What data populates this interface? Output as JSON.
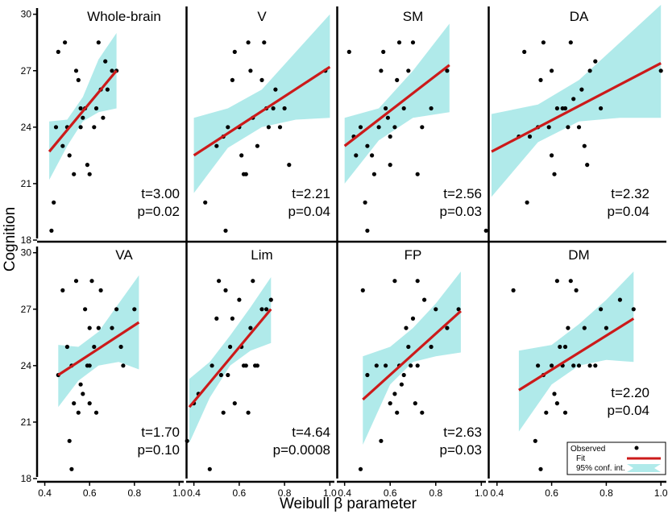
{
  "chart_data": {
    "type": "scatter",
    "xlabel": "Weibull β parameter",
    "ylabel": "Cognition",
    "xticks": [
      "0.4",
      "0.6",
      "0.8",
      "1.0"
    ],
    "yticks": [
      "18",
      "21",
      "24",
      "27",
      "30"
    ],
    "xlim": [
      0.38,
      1.02
    ],
    "ylim": [
      18,
      30.5
    ],
    "legend": {
      "position": "bottom-right",
      "entries": [
        "Observed",
        "Fit",
        "95% conf. int."
      ]
    },
    "colors": {
      "fit": "#cc1a1a",
      "ci": "#b0eaea",
      "points": "#000000"
    },
    "panels": [
      {
        "title": "Whole-brain",
        "t": "t=3.00",
        "p": "p=0.02",
        "fit": [
          0.42,
          22.7,
          0.72,
          27.0
        ],
        "ci_lower": [
          [
            0.42,
            21.2
          ],
          [
            0.5,
            23.0
          ],
          [
            0.57,
            24.3
          ],
          [
            0.64,
            24.8
          ],
          [
            0.72,
            25.0
          ]
        ],
        "ci_upper": [
          [
            0.42,
            24.3
          ],
          [
            0.5,
            24.4
          ],
          [
            0.57,
            25.6
          ],
          [
            0.64,
            27.6
          ],
          [
            0.72,
            29.0
          ]
        ],
        "points": [
          [
            0.43,
            18.5
          ],
          [
            0.44,
            20.0
          ],
          [
            0.45,
            24.0
          ],
          [
            0.46,
            28.0
          ],
          [
            0.48,
            23.0
          ],
          [
            0.49,
            28.5
          ],
          [
            0.5,
            24.0
          ],
          [
            0.51,
            22.5
          ],
          [
            0.53,
            21.5
          ],
          [
            0.54,
            27.0
          ],
          [
            0.55,
            26.5
          ],
          [
            0.56,
            25.0
          ],
          [
            0.57,
            24.5
          ],
          [
            0.58,
            25.0
          ],
          [
            0.59,
            22.0
          ],
          [
            0.6,
            21.5
          ],
          [
            0.62,
            24.0
          ],
          [
            0.63,
            25.0
          ],
          [
            0.64,
            28.5
          ],
          [
            0.65,
            26.0
          ],
          [
            0.66,
            24.5
          ],
          [
            0.67,
            27.5
          ],
          [
            0.68,
            26.0
          ],
          [
            0.7,
            27.0
          ],
          [
            0.72,
            27.0
          ],
          [
            0.56,
            24.0
          ]
        ]
      },
      {
        "title": "V",
        "t": "t=2.21",
        "p": "p=0.04",
        "fit": [
          0.4,
          22.5,
          1.0,
          27.2
        ],
        "ci_lower": [
          [
            0.4,
            20.5
          ],
          [
            0.55,
            22.9
          ],
          [
            0.7,
            24.0
          ],
          [
            0.85,
            24.4
          ],
          [
            1.0,
            24.5
          ]
        ],
        "ci_upper": [
          [
            0.4,
            24.5
          ],
          [
            0.55,
            25.0
          ],
          [
            0.7,
            26.0
          ],
          [
            0.85,
            28.0
          ],
          [
            1.0,
            30.0
          ]
        ],
        "points": [
          [
            0.45,
            20.0
          ],
          [
            0.5,
            23.0
          ],
          [
            0.54,
            18.5
          ],
          [
            0.55,
            24.0
          ],
          [
            0.57,
            26.5
          ],
          [
            0.58,
            28.0
          ],
          [
            0.6,
            24.0
          ],
          [
            0.61,
            22.5
          ],
          [
            0.62,
            21.5
          ],
          [
            0.63,
            21.5
          ],
          [
            0.64,
            28.5
          ],
          [
            0.65,
            27.0
          ],
          [
            0.66,
            24.5
          ],
          [
            0.68,
            23.0
          ],
          [
            0.7,
            26.5
          ],
          [
            0.71,
            28.5
          ],
          [
            0.72,
            25.0
          ],
          [
            0.73,
            24.0
          ],
          [
            0.75,
            25.0
          ],
          [
            0.78,
            24.0
          ],
          [
            0.8,
            25.0
          ],
          [
            0.82,
            22.0
          ],
          [
            0.98,
            27.0
          ],
          [
            0.53,
            23.5
          ],
          [
            0.76,
            26.0
          ]
        ]
      },
      {
        "title": "SM",
        "t": "t=2.56",
        "p": "p=0.03",
        "fit": [
          0.4,
          23.0,
          0.86,
          27.3
        ],
        "ci_lower": [
          [
            0.4,
            21.0
          ],
          [
            0.55,
            23.3
          ],
          [
            0.7,
            24.5
          ],
          [
            0.86,
            24.8
          ]
        ],
        "ci_upper": [
          [
            0.4,
            24.5
          ],
          [
            0.55,
            25.0
          ],
          [
            0.7,
            27.0
          ],
          [
            0.86,
            29.5
          ]
        ],
        "points": [
          [
            0.42,
            28.0
          ],
          [
            0.44,
            23.5
          ],
          [
            0.45,
            22.5
          ],
          [
            0.47,
            24.0
          ],
          [
            0.49,
            20.0
          ],
          [
            0.5,
            18.5
          ],
          [
            0.5,
            23.0
          ],
          [
            0.52,
            22.5
          ],
          [
            0.53,
            21.5
          ],
          [
            0.55,
            24.0
          ],
          [
            0.56,
            27.0
          ],
          [
            0.58,
            25.0
          ],
          [
            0.59,
            24.5
          ],
          [
            0.6,
            23.5
          ],
          [
            0.6,
            22.0
          ],
          [
            0.62,
            24.0
          ],
          [
            0.63,
            26.5
          ],
          [
            0.64,
            28.5
          ],
          [
            0.66,
            25.0
          ],
          [
            0.68,
            27.0
          ],
          [
            0.7,
            28.5
          ],
          [
            0.72,
            21.5
          ],
          [
            0.74,
            24.0
          ],
          [
            0.78,
            25.0
          ],
          [
            0.85,
            27.0
          ],
          [
            0.57,
            28.0
          ]
        ]
      },
      {
        "title": "DA",
        "t": "t=2.32",
        "p": "p=0.04",
        "fit": [
          0.38,
          22.7,
          1.0,
          27.4
        ],
        "ci_lower": [
          [
            0.38,
            20.3
          ],
          [
            0.55,
            23.2
          ],
          [
            0.7,
            24.3
          ],
          [
            0.85,
            24.5
          ],
          [
            1.0,
            24.5
          ]
        ],
        "ci_upper": [
          [
            0.38,
            24.7
          ],
          [
            0.55,
            25.2
          ],
          [
            0.7,
            26.5
          ],
          [
            0.85,
            28.5
          ],
          [
            1.0,
            30.5
          ]
        ],
        "points": [
          [
            0.36,
            18.5
          ],
          [
            0.48,
            23.5
          ],
          [
            0.5,
            28.0
          ],
          [
            0.51,
            20.0
          ],
          [
            0.52,
            23.5
          ],
          [
            0.55,
            24.0
          ],
          [
            0.56,
            26.5
          ],
          [
            0.57,
            28.5
          ],
          [
            0.59,
            24.0
          ],
          [
            0.6,
            27.0
          ],
          [
            0.6,
            22.5
          ],
          [
            0.61,
            21.5
          ],
          [
            0.62,
            25.0
          ],
          [
            0.64,
            25.0
          ],
          [
            0.65,
            25.0
          ],
          [
            0.66,
            24.0
          ],
          [
            0.67,
            28.5
          ],
          [
            0.68,
            25.5
          ],
          [
            0.7,
            24.0
          ],
          [
            0.72,
            23.0
          ],
          [
            0.73,
            22.0
          ],
          [
            0.74,
            27.0
          ],
          [
            0.76,
            27.5
          ],
          [
            0.78,
            25.0
          ],
          [
            1.0,
            27.0
          ],
          [
            0.71,
            26.0
          ]
        ]
      },
      {
        "title": "VA",
        "t": "t=1.70",
        "p": "p=0.10",
        "fit": [
          0.46,
          23.5,
          0.82,
          26.3
        ],
        "ci_lower": [
          [
            0.46,
            21.8
          ],
          [
            0.55,
            23.2
          ],
          [
            0.64,
            24.0
          ],
          [
            0.73,
            24.2
          ],
          [
            0.82,
            23.8
          ]
        ],
        "ci_upper": [
          [
            0.46,
            25.1
          ],
          [
            0.55,
            25.0
          ],
          [
            0.64,
            25.8
          ],
          [
            0.73,
            27.3
          ],
          [
            0.82,
            28.8
          ]
        ],
        "points": [
          [
            0.46,
            23.5
          ],
          [
            0.48,
            28.0
          ],
          [
            0.5,
            25.0
          ],
          [
            0.51,
            20.0
          ],
          [
            0.52,
            18.5
          ],
          [
            0.52,
            24.0
          ],
          [
            0.53,
            22.0
          ],
          [
            0.54,
            28.5
          ],
          [
            0.55,
            21.5
          ],
          [
            0.56,
            23.0
          ],
          [
            0.57,
            22.5
          ],
          [
            0.58,
            27.0
          ],
          [
            0.59,
            24.0
          ],
          [
            0.6,
            24.0
          ],
          [
            0.6,
            26.0
          ],
          [
            0.61,
            28.5
          ],
          [
            0.62,
            25.0
          ],
          [
            0.63,
            21.5
          ],
          [
            0.64,
            26.0
          ],
          [
            0.65,
            28.0
          ],
          [
            0.7,
            26.0
          ],
          [
            0.72,
            27.0
          ],
          [
            0.74,
            25.0
          ],
          [
            0.75,
            24.0
          ],
          [
            0.8,
            27.0
          ],
          [
            0.6,
            22.0
          ]
        ]
      },
      {
        "title": "Lim",
        "t": "t=4.64",
        "p": "p=0.0008",
        "fit": [
          0.38,
          21.8,
          0.74,
          27.0
        ],
        "ci_lower": [
          [
            0.38,
            19.9
          ],
          [
            0.47,
            22.3
          ],
          [
            0.56,
            24.0
          ],
          [
            0.65,
            24.8
          ],
          [
            0.74,
            25.2
          ]
        ],
        "ci_upper": [
          [
            0.38,
            23.3
          ],
          [
            0.47,
            24.2
          ],
          [
            0.56,
            25.6
          ],
          [
            0.65,
            27.1
          ],
          [
            0.74,
            28.7
          ]
        ],
        "points": [
          [
            0.37,
            20.0
          ],
          [
            0.4,
            22.0
          ],
          [
            0.42,
            22.5
          ],
          [
            0.47,
            18.5
          ],
          [
            0.48,
            24.0
          ],
          [
            0.5,
            26.5
          ],
          [
            0.51,
            28.5
          ],
          [
            0.52,
            23.5
          ],
          [
            0.53,
            21.5
          ],
          [
            0.54,
            28.0
          ],
          [
            0.55,
            23.5
          ],
          [
            0.56,
            25.0
          ],
          [
            0.57,
            26.5
          ],
          [
            0.58,
            22.0
          ],
          [
            0.6,
            27.5
          ],
          [
            0.62,
            24.0
          ],
          [
            0.63,
            24.0
          ],
          [
            0.64,
            21.5
          ],
          [
            0.65,
            26.0
          ],
          [
            0.66,
            28.5
          ],
          [
            0.67,
            24.0
          ],
          [
            0.68,
            24.0
          ],
          [
            0.7,
            27.0
          ],
          [
            0.72,
            27.0
          ],
          [
            0.74,
            27.5
          ],
          [
            0.61,
            25.0
          ]
        ]
      },
      {
        "title": "FP",
        "t": "t=2.63",
        "p": "p=0.03",
        "fit": [
          0.48,
          22.2,
          0.91,
          26.9
        ],
        "ci_lower": [
          [
            0.48,
            19.8
          ],
          [
            0.6,
            23.0
          ],
          [
            0.7,
            24.2
          ],
          [
            0.8,
            24.5
          ],
          [
            0.91,
            24.7
          ]
        ],
        "ci_upper": [
          [
            0.48,
            24.5
          ],
          [
            0.6,
            25.0
          ],
          [
            0.7,
            26.0
          ],
          [
            0.8,
            27.3
          ],
          [
            0.91,
            29.0
          ]
        ],
        "points": [
          [
            0.47,
            18.5
          ],
          [
            0.48,
            28.0
          ],
          [
            0.5,
            23.5
          ],
          [
            0.54,
            24.0
          ],
          [
            0.56,
            20.0
          ],
          [
            0.58,
            24.0
          ],
          [
            0.6,
            22.0
          ],
          [
            0.62,
            22.5
          ],
          [
            0.62,
            28.5
          ],
          [
            0.63,
            21.5
          ],
          [
            0.64,
            24.0
          ],
          [
            0.65,
            23.0
          ],
          [
            0.67,
            26.0
          ],
          [
            0.68,
            25.0
          ],
          [
            0.69,
            24.0
          ],
          [
            0.7,
            26.5
          ],
          [
            0.72,
            24.0
          ],
          [
            0.72,
            28.5
          ],
          [
            0.74,
            21.5
          ],
          [
            0.75,
            27.5
          ],
          [
            0.78,
            25.0
          ],
          [
            0.8,
            27.0
          ],
          [
            0.85,
            26.0
          ],
          [
            0.9,
            27.0
          ],
          [
            0.66,
            23.5
          ],
          [
            0.71,
            22.0
          ]
        ]
      },
      {
        "title": "DM",
        "t": "t=2.20",
        "p": "p=0.04",
        "fit": [
          0.48,
          22.7,
          0.9,
          26.5
        ],
        "ci_lower": [
          [
            0.48,
            20.5
          ],
          [
            0.6,
            23.0
          ],
          [
            0.7,
            24.0
          ],
          [
            0.8,
            24.3
          ],
          [
            0.9,
            24.2
          ]
        ],
        "ci_upper": [
          [
            0.48,
            24.8
          ],
          [
            0.6,
            25.1
          ],
          [
            0.7,
            26.2
          ],
          [
            0.8,
            27.5
          ],
          [
            0.9,
            29.0
          ]
        ],
        "points": [
          [
            0.46,
            28.0
          ],
          [
            0.54,
            20.0
          ],
          [
            0.55,
            24.0
          ],
          [
            0.57,
            23.5
          ],
          [
            0.58,
            21.5
          ],
          [
            0.6,
            24.0
          ],
          [
            0.61,
            22.5
          ],
          [
            0.62,
            28.5
          ],
          [
            0.62,
            22.0
          ],
          [
            0.63,
            25.0
          ],
          [
            0.64,
            24.0
          ],
          [
            0.65,
            25.0
          ],
          [
            0.66,
            26.0
          ],
          [
            0.67,
            28.5
          ],
          [
            0.68,
            24.0
          ],
          [
            0.69,
            28.0
          ],
          [
            0.7,
            24.0
          ],
          [
            0.72,
            26.0
          ],
          [
            0.74,
            24.0
          ],
          [
            0.76,
            24.0
          ],
          [
            0.78,
            27.0
          ],
          [
            0.8,
            26.0
          ],
          [
            0.85,
            27.5
          ],
          [
            0.9,
            27.0
          ],
          [
            0.65,
            21.5
          ],
          [
            0.56,
            18.5
          ]
        ]
      }
    ]
  }
}
